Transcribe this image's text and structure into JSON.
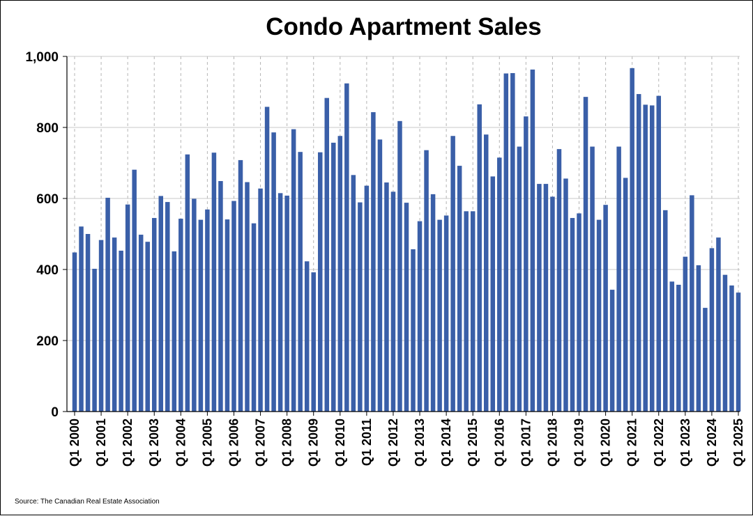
{
  "chart_data": {
    "type": "bar",
    "title": "Condo Apartment Sales",
    "source": "Source: The Canadian Real Estate Association",
    "bar_color": "#3A5FA8",
    "grid": true,
    "ylim": [
      0,
      1000
    ],
    "yticks": [
      0,
      200,
      400,
      600,
      800,
      1000
    ],
    "ytick_labels": [
      "0",
      "200",
      "400",
      "600",
      "800",
      "1,000"
    ],
    "xtick_labels": [
      "Q1 2000",
      "Q1 2001",
      "Q1 2002",
      "Q1 2003",
      "Q1 2004",
      "Q1 2005",
      "Q1 2006",
      "Q1 2007",
      "Q1 2008",
      "Q1 2009",
      "Q1 2010",
      "Q1 2011",
      "Q1 2012",
      "Q1 2013",
      "Q1 2014",
      "Q1 2015",
      "Q1 2016",
      "Q1 2017",
      "Q1 2018",
      "Q1 2019",
      "Q1 2020",
      "Q1 2021",
      "Q1 2022",
      "Q1 2023",
      "Q1 2024",
      "Q1 2025"
    ],
    "categories": [
      "Q1 2000",
      "Q2 2000",
      "Q3 2000",
      "Q4 2000",
      "Q1 2001",
      "Q2 2001",
      "Q3 2001",
      "Q4 2001",
      "Q1 2002",
      "Q2 2002",
      "Q3 2002",
      "Q4 2002",
      "Q1 2003",
      "Q2 2003",
      "Q3 2003",
      "Q4 2003",
      "Q1 2004",
      "Q2 2004",
      "Q3 2004",
      "Q4 2004",
      "Q1 2005",
      "Q2 2005",
      "Q3 2005",
      "Q4 2005",
      "Q1 2006",
      "Q2 2006",
      "Q3 2006",
      "Q4 2006",
      "Q1 2007",
      "Q2 2007",
      "Q3 2007",
      "Q4 2007",
      "Q1 2008",
      "Q2 2008",
      "Q3 2008",
      "Q4 2008",
      "Q1 2009",
      "Q2 2009",
      "Q3 2009",
      "Q4 2009",
      "Q1 2010",
      "Q2 2010",
      "Q3 2010",
      "Q4 2010",
      "Q1 2011",
      "Q2 2011",
      "Q3 2011",
      "Q4 2011",
      "Q1 2012",
      "Q2 2012",
      "Q3 2012",
      "Q4 2012",
      "Q1 2013",
      "Q2 2013",
      "Q3 2013",
      "Q4 2013",
      "Q1 2014",
      "Q2 2014",
      "Q3 2014",
      "Q4 2014",
      "Q1 2015",
      "Q2 2015",
      "Q3 2015",
      "Q4 2015",
      "Q1 2016",
      "Q2 2016",
      "Q3 2016",
      "Q4 2016",
      "Q1 2017",
      "Q2 2017",
      "Q3 2017",
      "Q4 2017",
      "Q1 2018",
      "Q2 2018",
      "Q3 2018",
      "Q4 2018",
      "Q1 2019",
      "Q2 2019",
      "Q3 2019",
      "Q4 2019",
      "Q1 2020",
      "Q2 2020",
      "Q3 2020",
      "Q4 2020",
      "Q1 2021",
      "Q2 2021",
      "Q3 2021",
      "Q4 2021",
      "Q1 2022",
      "Q2 2022",
      "Q3 2022",
      "Q4 2022",
      "Q1 2023",
      "Q2 2023",
      "Q3 2023",
      "Q4 2023",
      "Q1 2024",
      "Q2 2024",
      "Q3 2024",
      "Q4 2024",
      "Q1 2025"
    ],
    "values": [
      448,
      521,
      500,
      402,
      483,
      602,
      490,
      453,
      583,
      681,
      498,
      478,
      545,
      607,
      590,
      451,
      543,
      724,
      599,
      540,
      569,
      729,
      649,
      541,
      593,
      708,
      646,
      530,
      628,
      858,
      786,
      615,
      608,
      795,
      731,
      423,
      392,
      730,
      883,
      757,
      776,
      924,
      666,
      589,
      636,
      843,
      766,
      645,
      619,
      818,
      588,
      457,
      536,
      736,
      612,
      540,
      552,
      776,
      692,
      564,
      564,
      865,
      780,
      662,
      715,
      952,
      953,
      746,
      831,
      963,
      641,
      641,
      605,
      739,
      656,
      545,
      558,
      886,
      746,
      540,
      582,
      343,
      746,
      658,
      967,
      894,
      864,
      862,
      889,
      567,
      366,
      357,
      436,
      609,
      412,
      292,
      460,
      490,
      385,
      355,
      335
    ]
  }
}
